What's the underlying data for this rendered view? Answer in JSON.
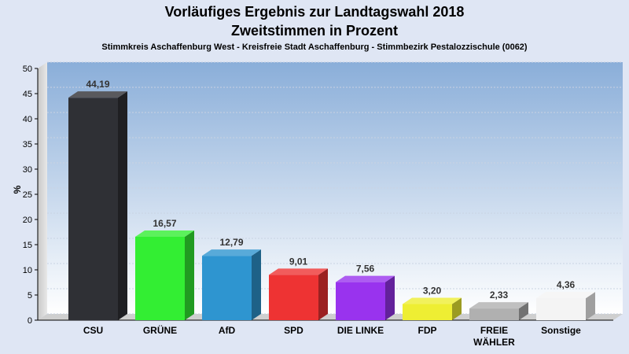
{
  "header": {
    "title": "Vorläufiges Ergebnis zur Landtagswahl 2018",
    "subtitle": "Zweitstimmen in Prozent",
    "district": "Stimmkreis Aschaffenburg West - Kreisfreie Stadt Aschaffenburg - Stimmbezirk Pestalozzischule (0062)"
  },
  "chart_data": {
    "type": "bar",
    "ylabel": "%",
    "ylim": [
      0,
      50
    ],
    "yticks": [
      0,
      5,
      10,
      15,
      20,
      25,
      30,
      35,
      40,
      45,
      50
    ],
    "grid": true,
    "categories": [
      "CSU",
      "GRÜNE",
      "AfD",
      "SPD",
      "DIE LINKE",
      "FDP",
      "FREIE WÄHLER",
      "Sonstige"
    ],
    "category_lines": [
      [
        "CSU"
      ],
      [
        "GRÜNE"
      ],
      [
        "AfD"
      ],
      [
        "SPD"
      ],
      [
        "DIE LINKE"
      ],
      [
        "FDP"
      ],
      [
        "FREIE",
        "WÄHLER"
      ],
      [
        "Sonstige"
      ]
    ],
    "values": [
      44.19,
      16.57,
      12.79,
      9.01,
      7.56,
      3.2,
      2.33,
      4.36
    ],
    "value_labels": [
      "44,19",
      "16,57",
      "12,79",
      "9,01",
      "7,56",
      "3,20",
      "2,33",
      "4,36"
    ],
    "colors": [
      "#2f3035",
      "#33ee33",
      "#2e95d0",
      "#ee3333",
      "#9933ee",
      "#eeee33",
      "#b0b0b0",
      "#f4f4f4"
    ]
  }
}
